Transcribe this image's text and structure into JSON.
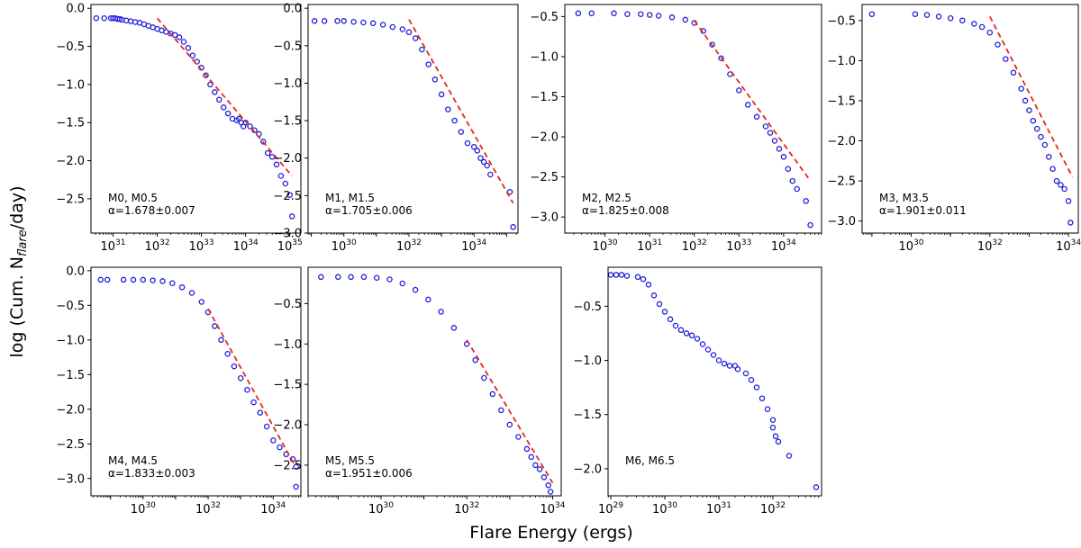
{
  "figure": {
    "xlabel": "Flare Energy (ergs)",
    "ylabel_prefix": "log (Cum. N",
    "ylabel_sub": "flare",
    "ylabel_suffix": "/day)"
  },
  "colors": {
    "points": "#1f1fd6",
    "fit": "#e8261f",
    "axes": "#000000"
  },
  "chart_data": [
    {
      "type": "scatter",
      "name": "M0, M0.5",
      "label": "M0, M0.5",
      "alpha": "α=1.678±0.007",
      "xlim": [
        30.5,
        35.25
      ],
      "ylim": [
        -2.95,
        0.05
      ],
      "xticks": [
        31,
        32,
        33,
        34,
        35
      ],
      "yticks": [
        0.0,
        -0.5,
        -1.0,
        -1.5,
        -2.0,
        -2.5
      ],
      "x": [
        30.62,
        30.8,
        30.95,
        31.0,
        31.05,
        31.1,
        31.15,
        31.2,
        31.3,
        31.4,
        31.5,
        31.6,
        31.7,
        31.8,
        31.9,
        32.0,
        32.1,
        32.2,
        32.3,
        32.4,
        32.5,
        32.6,
        32.7,
        32.8,
        32.9,
        33.0,
        33.1,
        33.2,
        33.3,
        33.4,
        33.5,
        33.6,
        33.7,
        33.8,
        33.85,
        33.9,
        33.95,
        34.0,
        34.1,
        34.2,
        34.3,
        34.4,
        34.5,
        34.6,
        34.7,
        34.8,
        34.9,
        35.0,
        35.05
      ],
      "y": [
        -0.13,
        -0.13,
        -0.13,
        -0.13,
        -0.13,
        -0.14,
        -0.14,
        -0.15,
        -0.16,
        -0.17,
        -0.18,
        -0.19,
        -0.21,
        -0.23,
        -0.25,
        -0.27,
        -0.29,
        -0.31,
        -0.33,
        -0.35,
        -0.38,
        -0.44,
        -0.52,
        -0.62,
        -0.7,
        -0.78,
        -0.88,
        -1.0,
        -1.1,
        -1.2,
        -1.3,
        -1.38,
        -1.45,
        -1.47,
        -1.45,
        -1.5,
        -1.55,
        -1.5,
        -1.55,
        -1.6,
        -1.65,
        -1.75,
        -1.9,
        -1.95,
        -2.05,
        -2.2,
        -2.3,
        -2.45,
        -2.73
      ],
      "fit_x": [
        32.0,
        35.05
      ],
      "fit_y": [
        -0.13,
        -2.2
      ]
    },
    {
      "type": "scatter",
      "name": "M1, M1.5",
      "label": "M1, M1.5",
      "alpha": "α=1.705±0.006",
      "xlim": [
        28.9,
        35.35
      ],
      "ylim": [
        -3.0,
        0.05
      ],
      "xticks": [
        30,
        32,
        34
      ],
      "yticks": [
        0.0,
        -0.5,
        -1.0,
        -1.5,
        -2.0,
        -2.5,
        -3.0
      ],
      "x": [
        29.1,
        29.4,
        29.8,
        30.0,
        30.3,
        30.6,
        30.9,
        31.2,
        31.5,
        31.8,
        32.0,
        32.2,
        32.4,
        32.6,
        32.8,
        33.0,
        33.2,
        33.4,
        33.6,
        33.8,
        34.0,
        34.1,
        34.2,
        34.3,
        34.4,
        34.5,
        35.1,
        35.2
      ],
      "y": [
        -0.17,
        -0.17,
        -0.17,
        -0.17,
        -0.18,
        -0.19,
        -0.2,
        -0.22,
        -0.25,
        -0.28,
        -0.32,
        -0.4,
        -0.55,
        -0.75,
        -0.95,
        -1.15,
        -1.35,
        -1.5,
        -1.65,
        -1.8,
        -1.85,
        -1.9,
        -2.0,
        -2.05,
        -2.1,
        -2.22,
        -2.45,
        -2.92
      ],
      "fit_x": [
        32.0,
        35.2
      ],
      "fit_y": [
        -0.15,
        -2.6
      ]
    },
    {
      "type": "scatter",
      "name": "M2, M2.5",
      "label": "M2, M2.5",
      "alpha": "α=1.825±0.008",
      "xlim": [
        29.1,
        34.85
      ],
      "ylim": [
        -3.2,
        -0.35
      ],
      "xticks": [
        30,
        31,
        32,
        33,
        34
      ],
      "yticks": [
        -0.5,
        -1.0,
        -1.5,
        -2.0,
        -2.5,
        -3.0
      ],
      "x": [
        29.4,
        29.7,
        30.2,
        30.5,
        30.8,
        31.0,
        31.2,
        31.5,
        31.8,
        32.0,
        32.2,
        32.4,
        32.6,
        32.8,
        33.0,
        33.2,
        33.4,
        33.6,
        33.7,
        33.8,
        33.9,
        34.0,
        34.1,
        34.2,
        34.3,
        34.5,
        34.6
      ],
      "y": [
        -0.46,
        -0.46,
        -0.46,
        -0.47,
        -0.47,
        -0.48,
        -0.49,
        -0.51,
        -0.54,
        -0.58,
        -0.68,
        -0.85,
        -1.02,
        -1.22,
        -1.42,
        -1.6,
        -1.75,
        -1.87,
        -1.95,
        -2.05,
        -2.15,
        -2.25,
        -2.4,
        -2.55,
        -2.65,
        -2.8,
        -3.1
      ],
      "fit_x": [
        32.0,
        34.6
      ],
      "fit_y": [
        -0.55,
        -2.55
      ]
    },
    {
      "type": "scatter",
      "name": "M3, M3.5",
      "label": "M3, M3.5",
      "alpha": "α=1.901±0.011",
      "xlim": [
        28.75,
        34.25
      ],
      "ylim": [
        -3.15,
        -0.3
      ],
      "xticks": [
        30,
        32,
        34
      ],
      "yticks": [
        -0.5,
        -1.0,
        -1.5,
        -2.0,
        -2.5,
        -3.0
      ],
      "x": [
        29.0,
        30.1,
        30.4,
        30.7,
        31.0,
        31.3,
        31.6,
        31.8,
        32.0,
        32.2,
        32.4,
        32.6,
        32.8,
        32.9,
        33.0,
        33.1,
        33.2,
        33.3,
        33.4,
        33.5,
        33.6,
        33.7,
        33.8,
        33.9,
        34.0,
        34.05
      ],
      "y": [
        -0.42,
        -0.42,
        -0.43,
        -0.45,
        -0.47,
        -0.5,
        -0.54,
        -0.58,
        -0.65,
        -0.8,
        -0.98,
        -1.15,
        -1.35,
        -1.5,
        -1.62,
        -1.75,
        -1.85,
        -1.95,
        -2.05,
        -2.2,
        -2.35,
        -2.5,
        -2.55,
        -2.6,
        -2.75,
        -3.02
      ],
      "fit_x": [
        32.0,
        34.1
      ],
      "fit_y": [
        -0.45,
        -2.45
      ]
    },
    {
      "type": "scatter",
      "name": "M4, M4.5",
      "label": "M4, M4.5",
      "alpha": "α=1.833±0.003",
      "xlim": [
        28.4,
        34.85
      ],
      "ylim": [
        -3.25,
        0.05
      ],
      "xticks": [
        30,
        32,
        34
      ],
      "yticks": [
        0.0,
        -0.5,
        -1.0,
        -1.5,
        -2.0,
        -2.5,
        -3.0
      ],
      "x": [
        28.7,
        28.9,
        29.4,
        29.7,
        30.0,
        30.3,
        30.6,
        30.9,
        31.2,
        31.5,
        31.8,
        32.0,
        32.2,
        32.4,
        32.6,
        32.8,
        33.0,
        33.2,
        33.4,
        33.6,
        33.8,
        34.0,
        34.2,
        34.4,
        34.6,
        34.7,
        34.7
      ],
      "y": [
        -0.13,
        -0.13,
        -0.13,
        -0.13,
        -0.13,
        -0.14,
        -0.15,
        -0.18,
        -0.24,
        -0.32,
        -0.45,
        -0.6,
        -0.8,
        -1.0,
        -1.2,
        -1.38,
        -1.55,
        -1.72,
        -1.9,
        -2.05,
        -2.25,
        -2.45,
        -2.55,
        -2.65,
        -2.72,
        -2.83,
        -3.12
      ],
      "fit_x": [
        32.0,
        34.65
      ],
      "fit_y": [
        -0.55,
        -2.8
      ]
    },
    {
      "type": "scatter",
      "name": "M5, M5.5",
      "label": "M5, M5.5",
      "alpha": "α=1.951±0.006",
      "xlim": [
        28.3,
        34.2
      ],
      "ylim": [
        -2.88,
        -0.05
      ],
      "xticks": [
        30,
        32,
        34
      ],
      "yticks": [
        -0.5,
        -1.0,
        -1.5,
        -2.0,
        -2.5
      ],
      "x": [
        28.6,
        29.0,
        29.3,
        29.6,
        29.9,
        30.2,
        30.5,
        30.8,
        31.1,
        31.4,
        31.7,
        32.0,
        32.2,
        32.4,
        32.6,
        32.8,
        33.0,
        33.2,
        33.4,
        33.5,
        33.6,
        33.7,
        33.8,
        33.9,
        33.95
      ],
      "y": [
        -0.17,
        -0.17,
        -0.17,
        -0.17,
        -0.18,
        -0.2,
        -0.25,
        -0.33,
        -0.45,
        -0.6,
        -0.8,
        -1.0,
        -1.2,
        -1.42,
        -1.62,
        -1.82,
        -2.0,
        -2.15,
        -2.3,
        -2.4,
        -2.5,
        -2.55,
        -2.65,
        -2.75,
        -2.83
      ],
      "fit_x": [
        32.0,
        34.0
      ],
      "fit_y": [
        -0.95,
        -2.72
      ]
    },
    {
      "type": "scatter",
      "name": "M6, M6.5",
      "label": "M6, M6.5",
      "alpha": "",
      "xlim": [
        28.95,
        32.9
      ],
      "ylim": [
        -2.25,
        -0.14
      ],
      "xticks": [
        29,
        30,
        31,
        32
      ],
      "yticks": [
        -0.5,
        -1.0,
        -1.5,
        -2.0
      ],
      "x": [
        29.0,
        29.1,
        29.2,
        29.3,
        29.5,
        29.6,
        29.7,
        29.8,
        29.9,
        30.0,
        30.1,
        30.2,
        30.3,
        30.4,
        30.5,
        30.6,
        30.7,
        30.8,
        30.9,
        31.0,
        31.1,
        31.2,
        31.3,
        31.35,
        31.5,
        31.6,
        31.7,
        31.8,
        31.9,
        32.0,
        32.0,
        32.05,
        32.1,
        32.3,
        32.8
      ],
      "y": [
        -0.21,
        -0.21,
        -0.21,
        -0.22,
        -0.23,
        -0.25,
        -0.3,
        -0.4,
        -0.48,
        -0.55,
        -0.62,
        -0.68,
        -0.72,
        -0.75,
        -0.77,
        -0.8,
        -0.85,
        -0.9,
        -0.95,
        -1.0,
        -1.03,
        -1.05,
        -1.05,
        -1.08,
        -1.12,
        -1.18,
        -1.25,
        -1.35,
        -1.45,
        -1.55,
        -1.62,
        -1.7,
        -1.75,
        -1.88,
        -2.17
      ],
      "fit_x": [],
      "fit_y": []
    }
  ]
}
